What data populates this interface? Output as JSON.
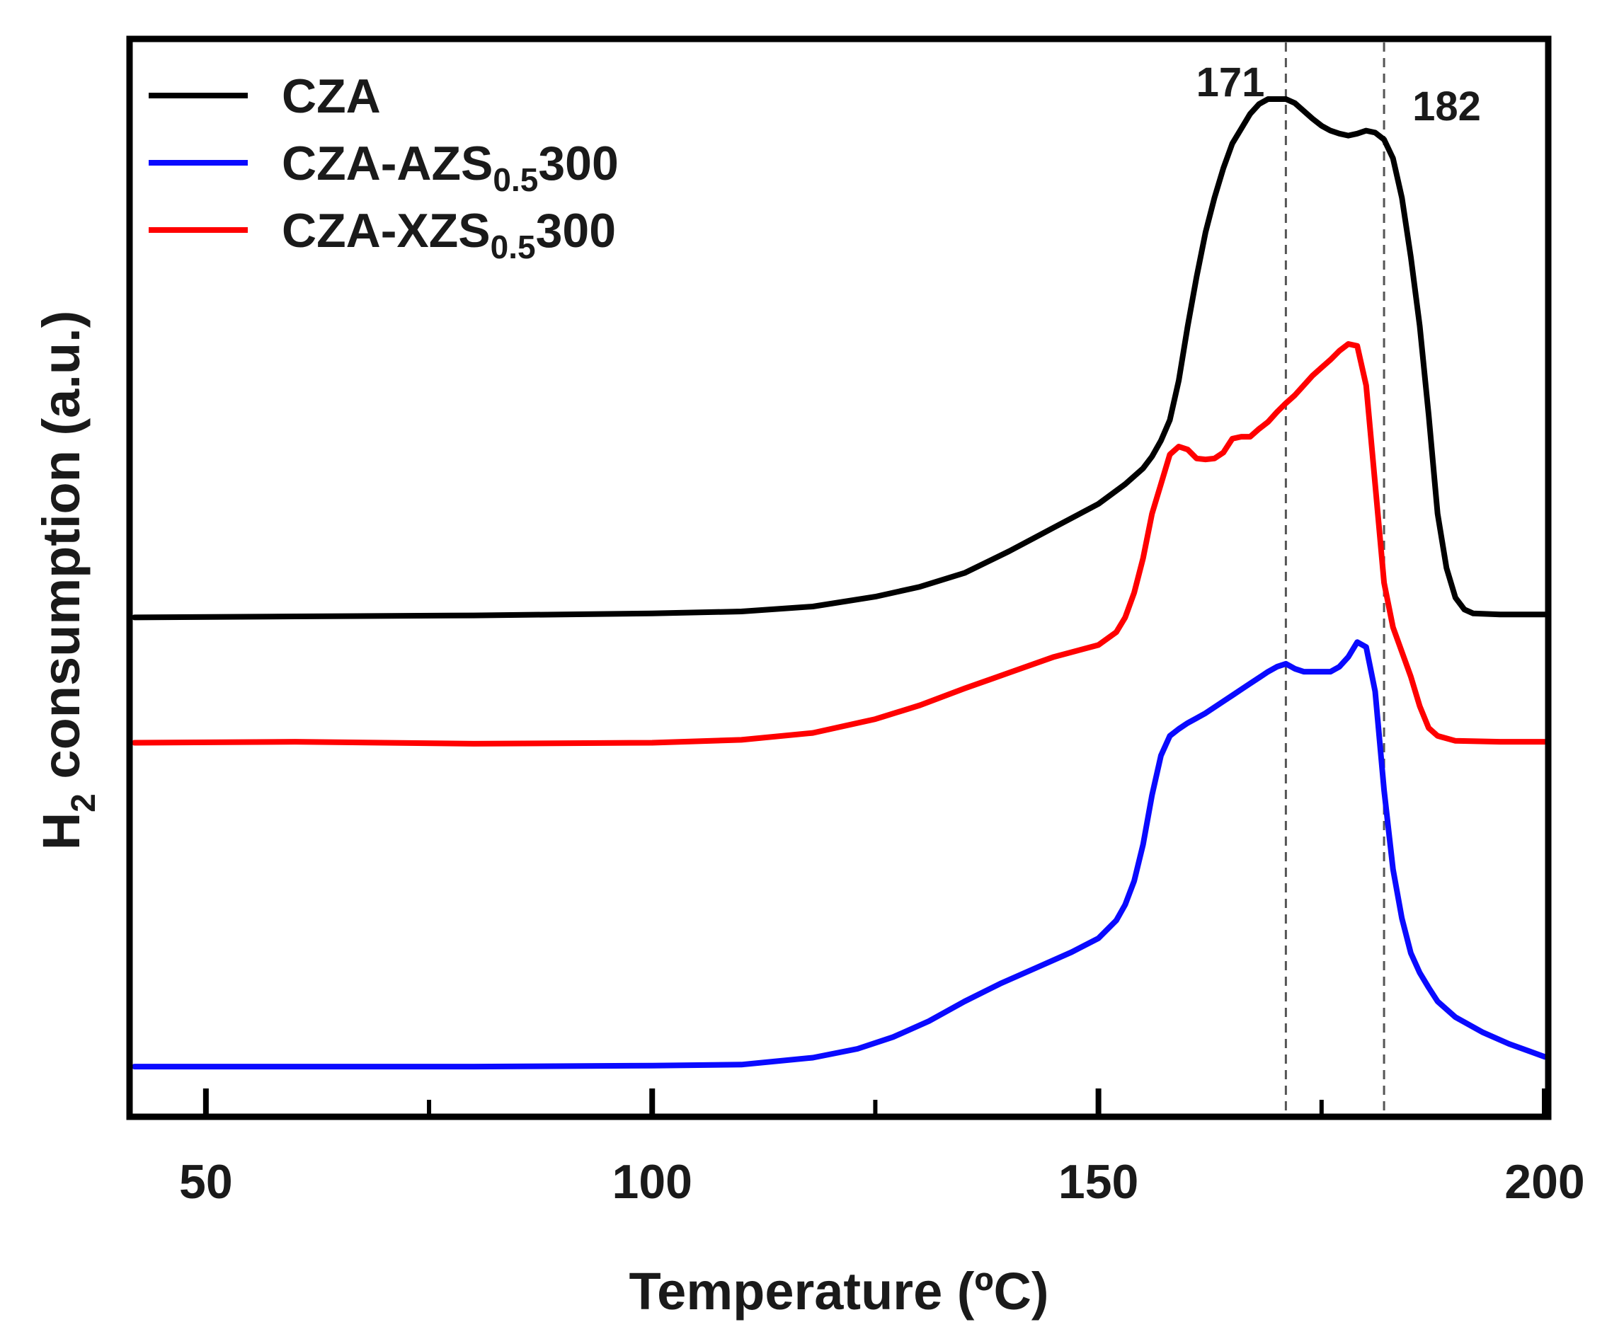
{
  "chart_data": {
    "type": "line",
    "title": "",
    "xlabel": "Temperature (ºC)",
    "ylabel_parts": {
      "main": "H",
      "sub": "2",
      "rest": " consumption (a.u.)"
    },
    "xlim": [
      42,
      200
    ],
    "ylim": [
      0,
      100
    ],
    "x_ticks": [
      {
        "value": 50,
        "label": "50",
        "major": true
      },
      {
        "value": 75,
        "label": "",
        "major": false
      },
      {
        "value": 100,
        "label": "100",
        "major": true
      },
      {
        "value": 125,
        "label": "",
        "major": false
      },
      {
        "value": 150,
        "label": "150",
        "major": true
      },
      {
        "value": 175,
        "label": "",
        "major": false
      },
      {
        "value": 200,
        "label": "200",
        "major": true
      }
    ],
    "reference_lines": [
      {
        "x": 171,
        "label": "171"
      },
      {
        "x": 182,
        "label": "182"
      }
    ],
    "legend_position": "top-left",
    "series": [
      {
        "name": "CZA",
        "legend": {
          "main": "CZA",
          "sub": "",
          "tail": ""
        },
        "color": "#000000",
        "points": [
          [
            42,
            47.5
          ],
          [
            60,
            47.6
          ],
          [
            80,
            47.7
          ],
          [
            100,
            47.9
          ],
          [
            110,
            48.1
          ],
          [
            118,
            48.6
          ],
          [
            125,
            49.6
          ],
          [
            130,
            50.6
          ],
          [
            135,
            52.0
          ],
          [
            140,
            54.2
          ],
          [
            145,
            56.6
          ],
          [
            150,
            59.0
          ],
          [
            153,
            61.0
          ],
          [
            155,
            62.6
          ],
          [
            156,
            63.8
          ],
          [
            157,
            65.4
          ],
          [
            158,
            67.5
          ],
          [
            159,
            71.5
          ],
          [
            160,
            77.0
          ],
          [
            161,
            82.0
          ],
          [
            162,
            86.5
          ],
          [
            163,
            90.0
          ],
          [
            164,
            93.0
          ],
          [
            165,
            95.5
          ],
          [
            166,
            97.0
          ],
          [
            167,
            98.5
          ],
          [
            168,
            99.5
          ],
          [
            169,
            100.0
          ],
          [
            170,
            100.0
          ],
          [
            171,
            100.0
          ],
          [
            172,
            99.6
          ],
          [
            173,
            98.8
          ],
          [
            174,
            98.0
          ],
          [
            175,
            97.3
          ],
          [
            176,
            96.8
          ],
          [
            177,
            96.5
          ],
          [
            178,
            96.3
          ],
          [
            179,
            96.5
          ],
          [
            180,
            96.8
          ],
          [
            181,
            96.6
          ],
          [
            182,
            95.9
          ],
          [
            183,
            94.0
          ],
          [
            184,
            90.0
          ],
          [
            185,
            84.0
          ],
          [
            186,
            77.0
          ],
          [
            187,
            68.0
          ],
          [
            188,
            58.0
          ],
          [
            189,
            52.5
          ],
          [
            190,
            49.5
          ],
          [
            191,
            48.3
          ],
          [
            192,
            47.9
          ],
          [
            195,
            47.8
          ],
          [
            200,
            47.8
          ]
        ]
      },
      {
        "name": "CZA-AZS0.5300",
        "legend": {
          "main": "CZA-AZS",
          "sub": "0.5",
          "tail": "300"
        },
        "color": "#0a0aff",
        "points": [
          [
            42,
            2.0
          ],
          [
            60,
            2.0
          ],
          [
            80,
            2.0
          ],
          [
            100,
            2.1
          ],
          [
            110,
            2.2
          ],
          [
            118,
            2.9
          ],
          [
            123,
            3.8
          ],
          [
            127,
            5.0
          ],
          [
            131,
            6.6
          ],
          [
            135,
            8.6
          ],
          [
            139,
            10.4
          ],
          [
            143,
            12.0
          ],
          [
            147,
            13.6
          ],
          [
            150,
            15.0
          ],
          [
            152,
            16.8
          ],
          [
            153,
            18.4
          ],
          [
            154,
            20.8
          ],
          [
            155,
            24.5
          ],
          [
            156,
            29.5
          ],
          [
            157,
            33.5
          ],
          [
            158,
            35.5
          ],
          [
            159,
            36.2
          ],
          [
            160,
            36.8
          ],
          [
            161,
            37.3
          ],
          [
            162,
            37.8
          ],
          [
            163,
            38.4
          ],
          [
            164,
            39.0
          ],
          [
            165,
            39.6
          ],
          [
            166,
            40.2
          ],
          [
            167,
            40.8
          ],
          [
            168,
            41.4
          ],
          [
            169,
            42.0
          ],
          [
            170,
            42.5
          ],
          [
            171,
            42.8
          ],
          [
            172,
            42.3
          ],
          [
            173,
            42.0
          ],
          [
            174,
            42.0
          ],
          [
            175,
            42.0
          ],
          [
            176,
            42.0
          ],
          [
            177,
            42.5
          ],
          [
            178,
            43.5
          ],
          [
            179,
            45.0
          ],
          [
            180,
            44.5
          ],
          [
            181,
            40.0
          ],
          [
            182,
            30.0
          ],
          [
            183,
            22.0
          ],
          [
            184,
            17.0
          ],
          [
            185,
            13.5
          ],
          [
            186,
            11.5
          ],
          [
            187,
            10.0
          ],
          [
            188,
            8.6
          ],
          [
            190,
            7.0
          ],
          [
            193,
            5.5
          ],
          [
            196,
            4.3
          ],
          [
            200,
            3.0
          ]
        ]
      },
      {
        "name": "CZA-XZS0.5300",
        "legend": {
          "main": "CZA-XZS",
          "sub": "0.5",
          "tail": "300"
        },
        "color": "#ff0000",
        "points": [
          [
            42,
            34.8
          ],
          [
            60,
            34.9
          ],
          [
            80,
            34.7
          ],
          [
            100,
            34.8
          ],
          [
            110,
            35.1
          ],
          [
            118,
            35.8
          ],
          [
            125,
            37.2
          ],
          [
            130,
            38.6
          ],
          [
            135,
            40.3
          ],
          [
            140,
            41.9
          ],
          [
            145,
            43.5
          ],
          [
            150,
            44.7
          ],
          [
            152,
            46.0
          ],
          [
            153,
            47.5
          ],
          [
            154,
            50.0
          ],
          [
            155,
            53.5
          ],
          [
            156,
            58.0
          ],
          [
            157,
            61.0
          ],
          [
            158,
            64.0
          ],
          [
            159,
            64.8
          ],
          [
            160,
            64.5
          ],
          [
            161,
            63.6
          ],
          [
            162,
            63.5
          ],
          [
            163,
            63.6
          ],
          [
            164,
            64.2
          ],
          [
            165,
            65.6
          ],
          [
            166,
            65.8
          ],
          [
            167,
            65.8
          ],
          [
            168,
            66.6
          ],
          [
            169,
            67.3
          ],
          [
            170,
            68.3
          ],
          [
            171,
            69.2
          ],
          [
            172,
            70.0
          ],
          [
            173,
            71.0
          ],
          [
            174,
            72.0
          ],
          [
            175,
            72.8
          ],
          [
            176,
            73.6
          ],
          [
            177,
            74.5
          ],
          [
            178,
            75.2
          ],
          [
            179,
            75.0
          ],
          [
            180,
            71.0
          ],
          [
            181,
            61.0
          ],
          [
            182,
            51.0
          ],
          [
            183,
            46.5
          ],
          [
            184,
            44.0
          ],
          [
            185,
            41.5
          ],
          [
            186,
            38.5
          ],
          [
            187,
            36.3
          ],
          [
            188,
            35.5
          ],
          [
            190,
            35.0
          ],
          [
            195,
            34.9
          ],
          [
            200,
            34.9
          ]
        ]
      }
    ]
  }
}
